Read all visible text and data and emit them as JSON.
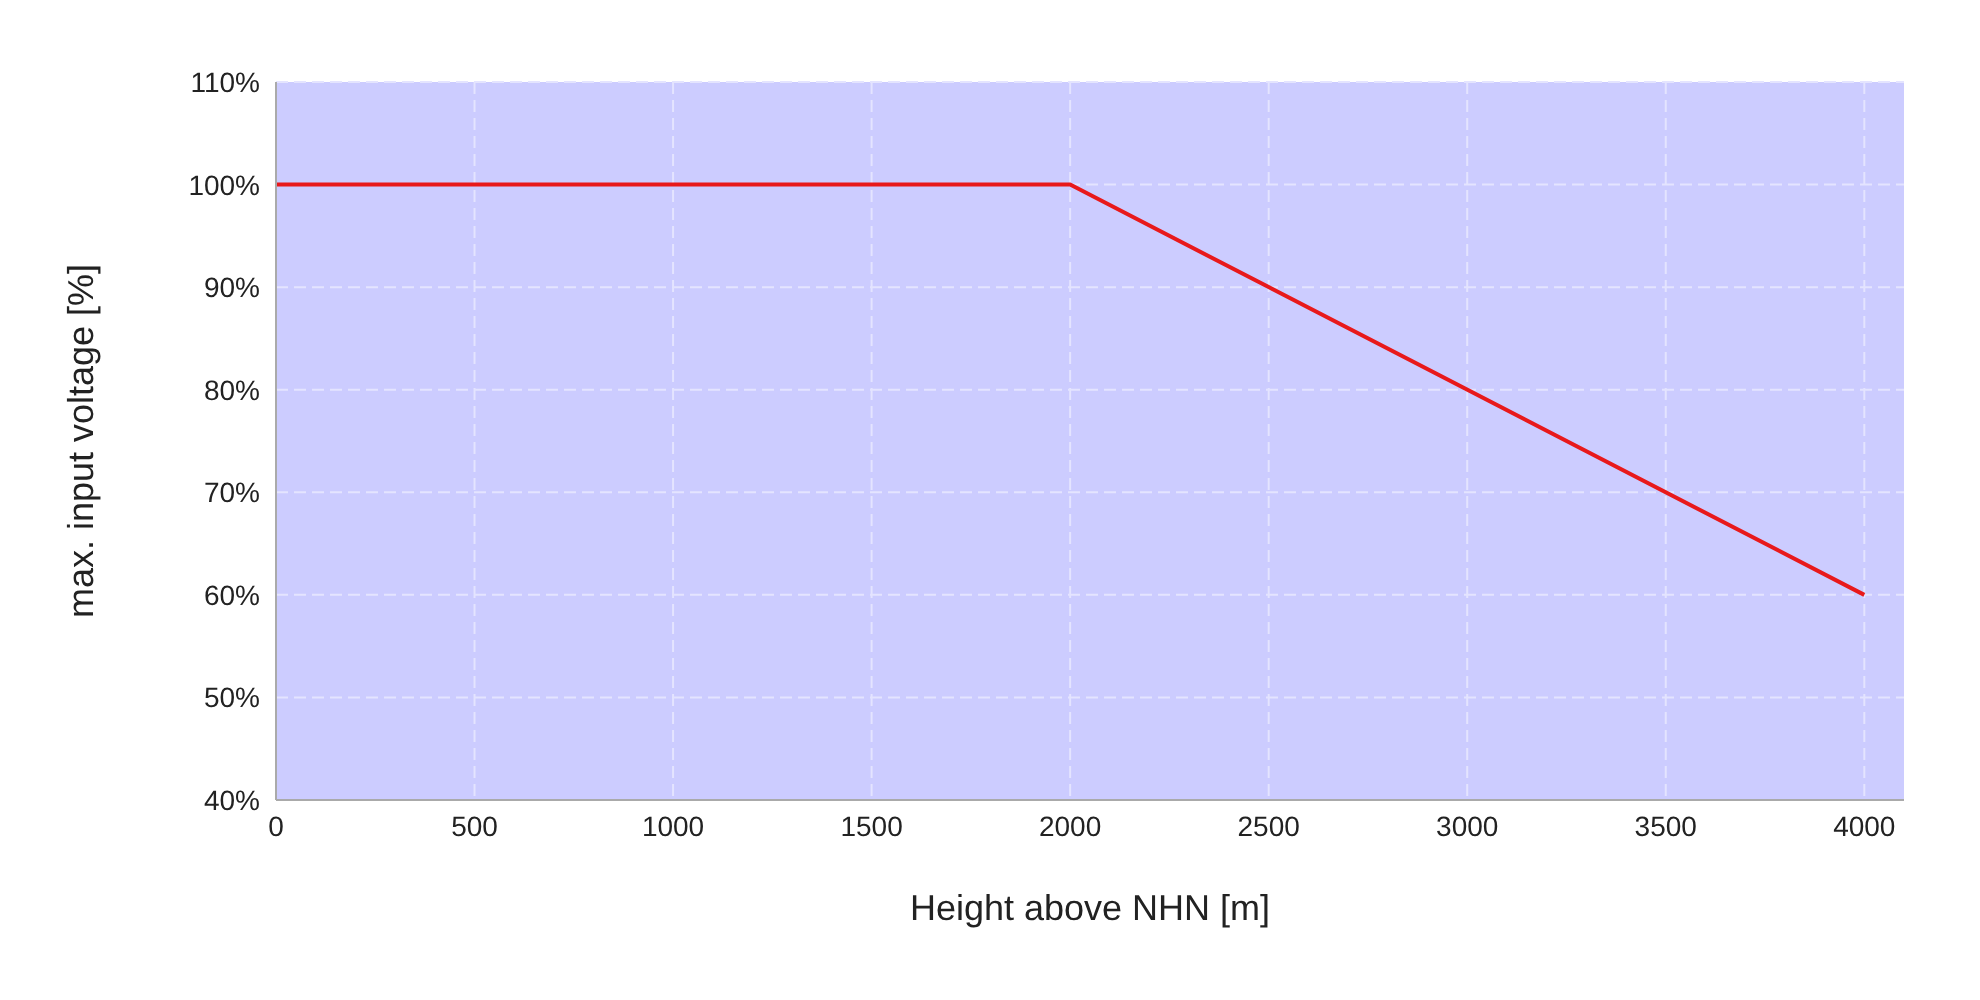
{
  "chart_data": {
    "type": "line",
    "xlabel": "Height above NHN [m]",
    "ylabel": "max. input voltage [%]",
    "x": [
      0,
      2000,
      4000
    ],
    "series": [
      {
        "color": "#e8191b",
        "values": [
          100,
          100,
          60
        ]
      }
    ],
    "xlim": [
      0,
      4100
    ],
    "xticks": [
      0,
      500,
      1000,
      1500,
      2000,
      2500,
      3000,
      3500,
      4000
    ],
    "ylim": [
      40,
      110
    ],
    "yticks": [
      {
        "value": 40,
        "label": "40%"
      },
      {
        "value": 50,
        "label": "50%"
      },
      {
        "value": 60,
        "label": "60%"
      },
      {
        "value": 70,
        "label": "70%"
      },
      {
        "value": 80,
        "label": "80%"
      },
      {
        "value": 90,
        "label": "90%"
      },
      {
        "value": 100,
        "label": "100%"
      },
      {
        "value": 110,
        "label": "110%"
      }
    ],
    "grid": true,
    "marker": "none",
    "line_style": "solid"
  }
}
